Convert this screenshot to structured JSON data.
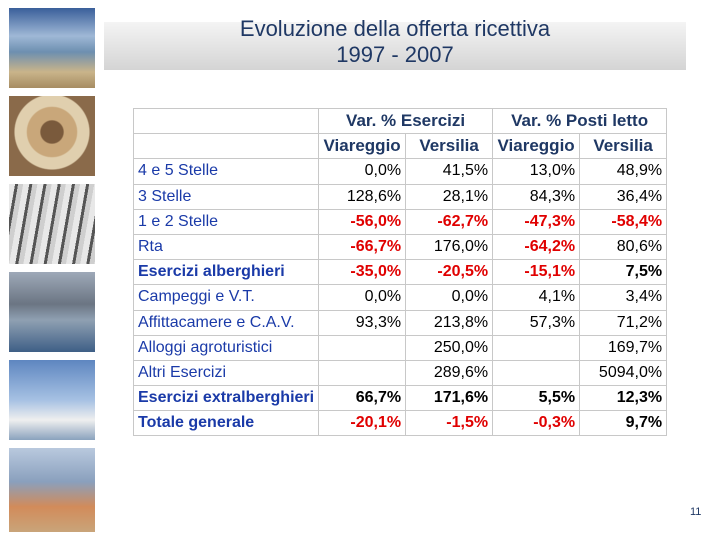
{
  "header": {
    "title": "Evoluzione della offerta ricettiva",
    "subtitle": "1997 - 2007"
  },
  "table": {
    "header_groups": [
      "Var. % Esercizi",
      "Var. % Posti letto"
    ],
    "subheaders": [
      "Viareggio",
      "Versilia",
      "Viareggio",
      "Versilia"
    ],
    "rows": [
      [
        "4 e 5 Stelle",
        "0,0%",
        "41,5%",
        "13,0%",
        "48,9%"
      ],
      [
        "3 Stelle",
        "128,6%",
        "28,1%",
        "84,3%",
        "36,4%"
      ],
      [
        "1 e 2 Stelle",
        "-56,0%",
        "-62,7%",
        "-47,3%",
        "-58,4%"
      ],
      [
        "Rta",
        "-66,7%",
        "176,0%",
        "-64,2%",
        "80,6%"
      ],
      [
        "Esercizi alberghieri",
        "-35,0%",
        "-20,5%",
        "-15,1%",
        "7,5%"
      ],
      [
        "Campeggi e V.T.",
        "0,0%",
        "0,0%",
        "4,1%",
        "3,4%"
      ],
      [
        "Affittacamere e C.A.V.",
        "93,3%",
        "213,8%",
        "57,3%",
        "71,2%"
      ],
      [
        "Alloggi agroturistici",
        null,
        "250,0%",
        null,
        "169,7%"
      ],
      [
        "Altri Esercizi",
        null,
        "289,6%",
        null,
        "5094,0%"
      ],
      [
        "Esercizi extralberghieri",
        "66,7%",
        "171,6%",
        "5,5%",
        "12,3%"
      ],
      [
        "Totale generale",
        "-20,1%",
        "-1,5%",
        "-0,3%",
        "9,7%"
      ]
    ]
  },
  "page_number": "11"
}
